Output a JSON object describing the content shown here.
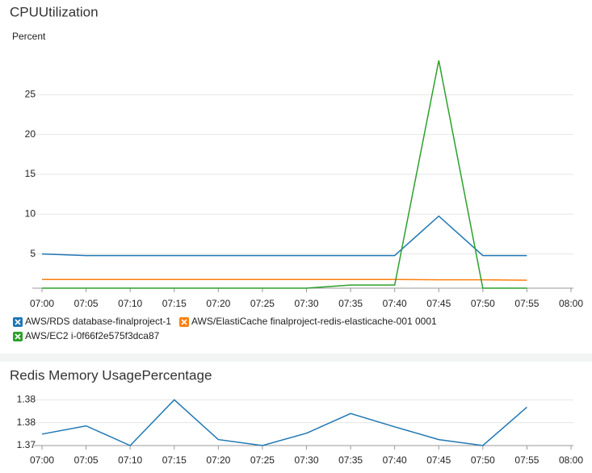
{
  "chart_data": [
    {
      "type": "line",
      "title": "CPUUtilization",
      "y_label": "Percent",
      "categories": [
        "07:00",
        "07:05",
        "07:10",
        "07:15",
        "07:20",
        "07:25",
        "07:30",
        "07:35",
        "07:40",
        "07:45",
        "07:50",
        "07:55",
        "08:00"
      ],
      "series": [
        {
          "name": "AWS/RDS database-finalproject-1",
          "color": "#1f77b4",
          "values": [
            5.0,
            4.8,
            4.8,
            4.8,
            4.8,
            4.8,
            4.8,
            4.8,
            4.8,
            9.75,
            4.8,
            4.8,
            null
          ]
        },
        {
          "name": "AWS/ElastiCache finalproject-redis-elasticache-001 0001",
          "color": "#ff7f0e",
          "values": [
            1.8,
            1.8,
            1.8,
            1.8,
            1.8,
            1.8,
            1.8,
            1.8,
            1.8,
            1.75,
            1.75,
            1.7,
            null
          ]
        },
        {
          "name": "AWS/EC2 i-0f66f2e575f3dca87",
          "color": "#2ca02c",
          "values": [
            0.7,
            0.7,
            0.7,
            0.7,
            0.7,
            0.7,
            0.7,
            1.1,
            1.1,
            29.3,
            0.7,
            0.7,
            null
          ]
        }
      ],
      "ylim": [
        0.7,
        30
      ],
      "yticks": [
        5,
        10,
        15,
        20,
        25
      ],
      "grid": true
    },
    {
      "type": "line",
      "title": "Redis Memory UsagePercentage",
      "categories": [
        "07:00",
        "07:05",
        "07:10",
        "07:15",
        "07:20",
        "07:25",
        "07:30",
        "07:35",
        "07:40",
        "07:45",
        "07:50",
        "07:55",
        "08:00"
      ],
      "series": [
        {
          "color": "#1f77b4",
          "values": [
            1.3725,
            1.3743,
            1.37,
            1.38,
            1.3713,
            1.37,
            1.3727,
            1.377,
            1.3741,
            1.3713,
            1.37,
            1.3784,
            null
          ]
        }
      ],
      "ylim": [
        1.37,
        1.382
      ],
      "yticks": [
        1.37,
        {
          "value": 1.375,
          "label": "1.38"
        },
        1.38
      ],
      "grid": true
    }
  ]
}
